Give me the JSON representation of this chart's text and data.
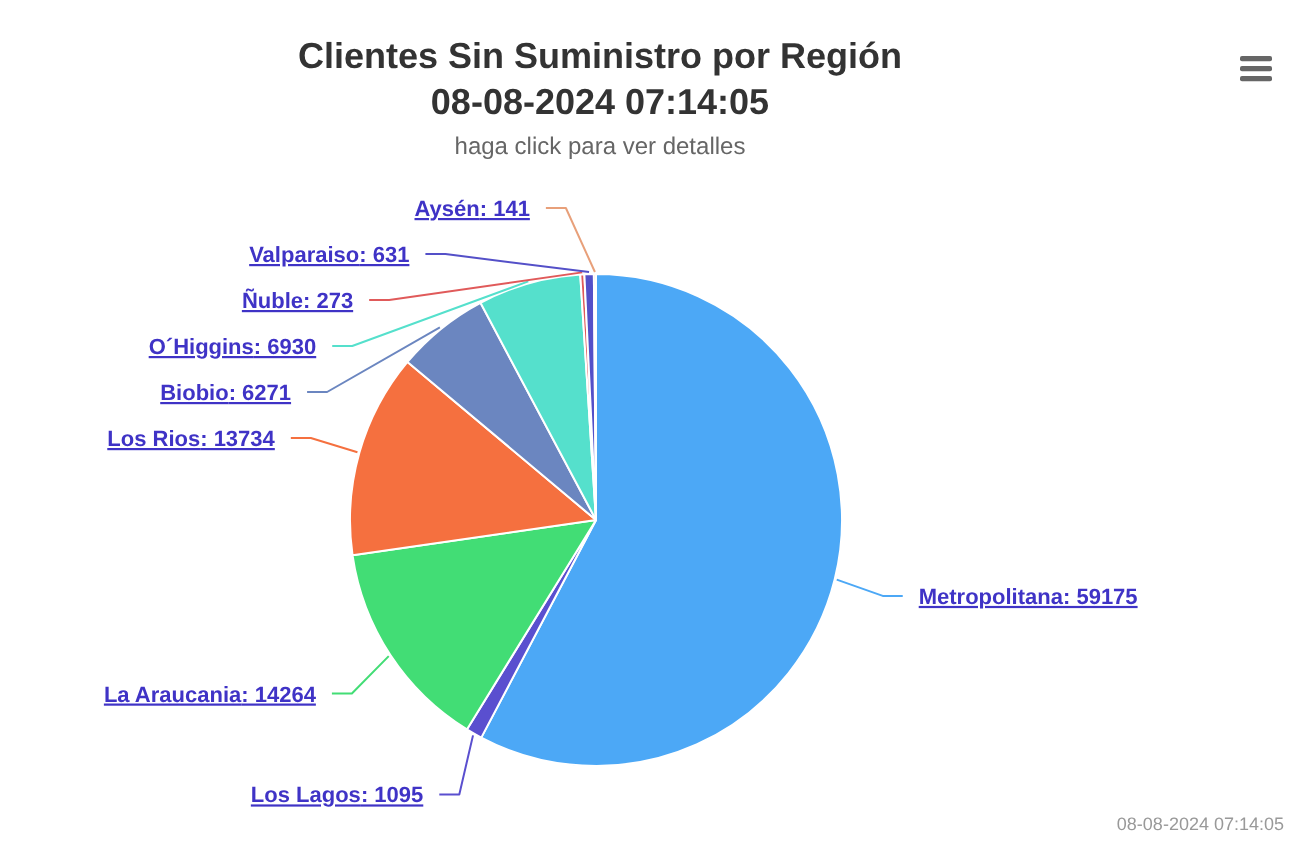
{
  "chart_data": {
    "type": "pie",
    "title": "Clientes Sin Suministro por Región\n08-08-2024 07:14:05",
    "subtitle": "haga click para ver detalles",
    "categories": [
      "Metropolitana",
      "Los Lagos",
      "La Araucania",
      "Los Rios",
      "Biobio",
      "O´Higgins",
      "Ñuble",
      "Valparaiso",
      "Aysén"
    ],
    "values": [
      59175,
      1095,
      14264,
      13734,
      6271,
      6930,
      273,
      631,
      141
    ],
    "value_labels": [
      ": 59175",
      ": 1095",
      ": 14264",
      ": 13734",
      ": 6271",
      ": 6930",
      ": 273",
      ": 631",
      ": 141"
    ],
    "colors": [
      "#4ca8f6",
      "#5a4fcf",
      "#42dd75",
      "#f5703f",
      "#6b86c0",
      "#55e0cc",
      "#e05a5a",
      "#5450c8",
      "#e8a07a"
    ],
    "annotations": [
      "08-08-2024 07:14:05"
    ]
  }
}
